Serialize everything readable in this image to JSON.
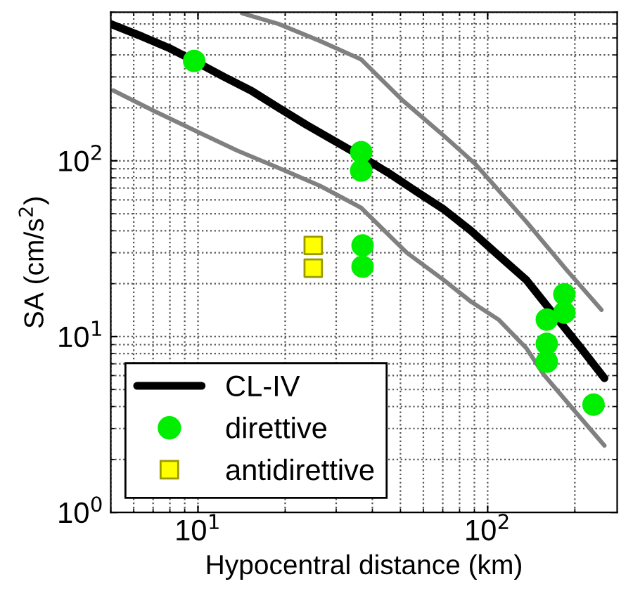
{
  "chart_data": {
    "type": "scatter",
    "xlabel": "Hypocentral distance (km)",
    "ylabel": "SA (cm/s$^{2}$)",
    "log": "xy",
    "grid": true,
    "legend": "bottom left",
    "xlim": [
      5,
      280
    ],
    "xticks": [
      {
        "value": 10,
        "label": "10$^{1}$"
      },
      {
        "value": 100,
        "label": "10$^{2}$"
      }
    ],
    "ylim": [
      1,
      700
    ],
    "yticks": [
      {
        "value": 1,
        "label": "10$^{0}$"
      },
      {
        "value": 10,
        "label": "10$^{1}$"
      },
      {
        "value": 100,
        "label": "10$^{2}$"
      }
    ],
    "series": [
      {
        "name": "CL-IV",
        "type": "line",
        "color": "#000000",
        "marker": "none",
        "x": [
          5,
          6.4,
          7.9,
          9.7,
          12.3,
          15.3,
          19,
          23.7,
          29.5,
          36.6,
          45.6,
          56.7,
          70.5,
          87.6,
          109,
          136,
          169,
          210,
          253
        ],
        "values": [
          600,
          510,
          440,
          370,
          300,
          250,
          200,
          160,
          130,
          106,
          85,
          67,
          53,
          40,
          29,
          21,
          13.4,
          8.6,
          5.8
        ]
      },
      {
        "type": "line",
        "color": "#808080",
        "marker": "none",
        "x": [
          14.2,
          19,
          26.4,
          36.6,
          50.8,
          70.5,
          90.6,
          136,
          187,
          247
        ],
        "values": [
          690,
          600,
          480,
          377,
          221,
          139,
          96,
          45,
          24,
          14.2
        ]
      },
      {
        "type": "line",
        "color": "#808080",
        "marker": "none",
        "x": [
          5.1,
          7.1,
          9.9,
          13.7,
          19,
          26.4,
          36.6,
          52.6,
          70.5,
          87.6,
          109,
          136,
          156,
          199,
          253
        ],
        "values": [
          251,
          191,
          147,
          114,
          91,
          72,
          54,
          30,
          21,
          15.8,
          12.5,
          8.6,
          6.1,
          3.8,
          2.4
        ]
      },
      {
        "name": "direttive",
        "type": "scatter",
        "color": "#00ee00",
        "marker": "circle",
        "x": [
          9.7,
          36.6,
          36.6,
          37,
          37,
          160,
          160,
          160,
          184,
          184,
          232
        ],
        "values": [
          370,
          112,
          88,
          33,
          25,
          12.5,
          9.1,
          7.2,
          17.4,
          13.7,
          4.1
        ]
      },
      {
        "name": "antidirettive",
        "type": "scatter",
        "color": "#ffff00",
        "marker": "square",
        "x": [
          25,
          25
        ],
        "values": [
          33,
          24.5
        ]
      }
    ]
  }
}
